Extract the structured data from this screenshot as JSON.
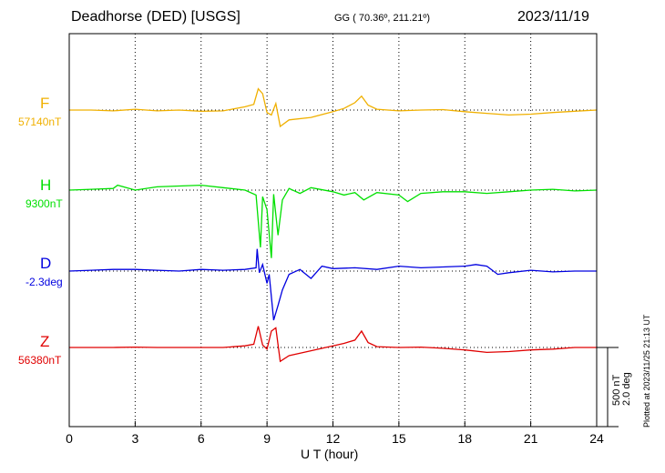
{
  "header": {
    "station": "Deadhorse (DED)  [USGS]",
    "coords": "GG ( 70.36º, 211.21º)",
    "date": "2023/11/19"
  },
  "axis": {
    "xlabel": "U T (hour)"
  },
  "scale": {
    "line1": "500 nT",
    "line2": "2.0 deg"
  },
  "plotted_note": "Plotted at 2023/11/25 21:13 UT",
  "components": [
    {
      "name": "F",
      "baseline": "57140nT",
      "color": "#f0b000"
    },
    {
      "name": "H",
      "baseline": "9300nT",
      "color": "#00e000"
    },
    {
      "name": "D",
      "baseline": "-2.3deg",
      "color": "#0000e0"
    },
    {
      "name": "Z",
      "baseline": "56380nT",
      "color": "#e00000"
    }
  ],
  "chart_data": {
    "type": "line",
    "title": "Deadhorse (DED)  [USGS]",
    "xlabel": "U T (hour)",
    "xlim": [
      0,
      24
    ],
    "xticks": [
      0,
      3,
      6,
      9,
      12,
      15,
      18,
      21,
      24
    ],
    "scale_bar": "500 nT / 2.0 deg",
    "series": [
      {
        "name": "F",
        "baseline": "57140nT",
        "color": "#f0b000",
        "x": [
          0,
          1,
          2,
          3,
          4,
          5,
          6,
          7,
          8,
          8.4,
          8.6,
          8.8,
          9.0,
          9.2,
          9.4,
          9.6,
          10,
          11,
          12,
          12.5,
          13,
          13.3,
          13.6,
          14,
          15,
          16,
          17,
          18,
          19,
          20,
          21,
          22,
          23,
          24
        ],
        "y": [
          0,
          0,
          -10,
          10,
          -10,
          0,
          -15,
          -10,
          40,
          70,
          260,
          200,
          -30,
          -60,
          80,
          -200,
          -120,
          -90,
          -20,
          20,
          90,
          170,
          60,
          10,
          -10,
          0,
          5,
          -20,
          -40,
          -60,
          -50,
          -30,
          -15,
          0
        ]
      },
      {
        "name": "H",
        "baseline": "9300nT",
        "color": "#00e000",
        "x": [
          0,
          1,
          2,
          2.2,
          3,
          4,
          5,
          6,
          7,
          8,
          8.5,
          8.7,
          8.8,
          9.0,
          9.2,
          9.3,
          9.5,
          9.7,
          10,
          10.5,
          11,
          12,
          12.5,
          13,
          13.4,
          14,
          15,
          15.4,
          16,
          17,
          18,
          19,
          20,
          21,
          22,
          23,
          24
        ],
        "y": [
          0,
          10,
          20,
          60,
          0,
          40,
          50,
          60,
          30,
          0,
          -60,
          -700,
          -80,
          -240,
          -830,
          -50,
          -550,
          -120,
          20,
          -40,
          30,
          -20,
          -60,
          -30,
          -120,
          -30,
          -60,
          -140,
          -40,
          -20,
          -20,
          -40,
          -20,
          0,
          10,
          -10,
          0
        ]
      },
      {
        "name": "D",
        "baseline": "-2.3deg",
        "color": "#0000e0",
        "x": [
          0,
          1,
          2,
          3,
          4,
          5,
          6,
          7,
          8,
          8.5,
          8.55,
          8.65,
          8.8,
          9.0,
          9.1,
          9.3,
          9.5,
          9.7,
          10,
          10.5,
          11,
          11.5,
          12,
          13,
          14,
          15,
          16,
          17,
          18,
          18.5,
          19,
          19.5,
          20,
          21,
          22,
          23,
          24
        ],
        "y": [
          0,
          10,
          20,
          20,
          10,
          0,
          20,
          10,
          20,
          40,
          270,
          -20,
          80,
          -150,
          -40,
          -600,
          -420,
          -230,
          -40,
          20,
          -90,
          60,
          30,
          40,
          20,
          60,
          40,
          50,
          60,
          80,
          60,
          -40,
          -20,
          10,
          -10,
          0,
          0
        ]
      },
      {
        "name": "Z",
        "baseline": "56380nT",
        "color": "#e00000",
        "x": [
          0,
          1,
          2,
          3,
          4,
          5,
          6,
          7,
          8,
          8.4,
          8.6,
          8.8,
          9.0,
          9.2,
          9.4,
          9.6,
          10,
          11,
          12,
          12.5,
          13,
          13.3,
          13.6,
          14,
          15,
          16,
          17,
          18,
          19,
          20,
          21,
          22,
          23,
          24
        ],
        "y": [
          0,
          0,
          0,
          5,
          0,
          0,
          0,
          0,
          20,
          40,
          260,
          30,
          -20,
          200,
          240,
          -170,
          -100,
          -40,
          20,
          50,
          90,
          200,
          60,
          10,
          0,
          5,
          -10,
          -30,
          -60,
          -50,
          -30,
          -20,
          0,
          0
        ]
      }
    ]
  }
}
